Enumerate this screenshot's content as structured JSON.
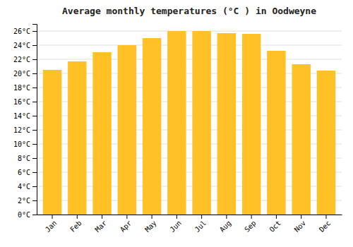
{
  "chart_data": {
    "type": "bar",
    "title": "Average monthly temperatures (°C ) in Oodweyne",
    "categories": [
      "Jan",
      "Feb",
      "Mar",
      "Apr",
      "May",
      "Jun",
      "Jul",
      "Aug",
      "Sep",
      "Oct",
      "Nov",
      "Dec"
    ],
    "values": [
      20.5,
      21.7,
      23.0,
      24.0,
      25.0,
      26.0,
      26.0,
      25.7,
      25.6,
      23.2,
      21.3,
      20.4
    ],
    "color": "#FFC125",
    "ylim": [
      0,
      27
    ],
    "yticks": [
      {
        "value": 0,
        "label": "0°C"
      },
      {
        "value": 2,
        "label": "2°C"
      },
      {
        "value": 4,
        "label": "4°C"
      },
      {
        "value": 6,
        "label": "6°C"
      },
      {
        "value": 8,
        "label": "8°C"
      },
      {
        "value": 10,
        "label": "10°C"
      },
      {
        "value": 12,
        "label": "12°C"
      },
      {
        "value": 14,
        "label": "14°C"
      },
      {
        "value": 16,
        "label": "16°C"
      },
      {
        "value": 18,
        "label": "18°C"
      },
      {
        "value": 20,
        "label": "20°C"
      },
      {
        "value": 22,
        "label": "22°C"
      },
      {
        "value": 24,
        "label": "24°C"
      },
      {
        "value": 26,
        "label": "26°C"
      }
    ],
    "grid": true
  }
}
